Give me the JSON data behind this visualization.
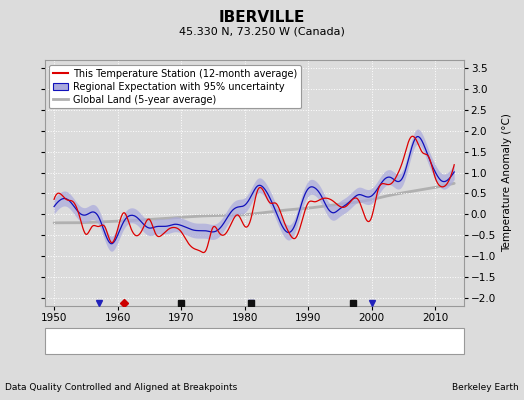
{
  "title": "IBERVILLE",
  "subtitle": "45.330 N, 73.250 W (Canada)",
  "ylabel": "Temperature Anomaly (°C)",
  "xlabel_left": "Data Quality Controlled and Aligned at Breakpoints",
  "xlabel_right": "Berkeley Earth",
  "ylim": [
    -2.2,
    3.7
  ],
  "xlim": [
    1948.5,
    2014.5
  ],
  "yticks": [
    -2,
    -1.5,
    -1,
    -0.5,
    0,
    0.5,
    1,
    1.5,
    2,
    2.5,
    3,
    3.5
  ],
  "xticks": [
    1950,
    1960,
    1970,
    1980,
    1990,
    2000,
    2010
  ],
  "bg_color": "#dcdcdc",
  "plot_bg_color": "#dcdcdc",
  "red_color": "#dd0000",
  "blue_color": "#1111bb",
  "blue_fill_color": "#aaaadd",
  "gray_color": "#b0b0b0",
  "legend_entries": [
    "This Temperature Station (12-month average)",
    "Regional Expectation with 95% uncertainty",
    "Global Land (5-year average)"
  ],
  "marker_station_move_years": [
    1961
  ],
  "marker_record_gap_years": [
    1970
  ],
  "marker_obs_change_years": [
    1957,
    1981,
    2000
  ],
  "marker_empirical_years": [
    1970,
    1981,
    1997
  ]
}
